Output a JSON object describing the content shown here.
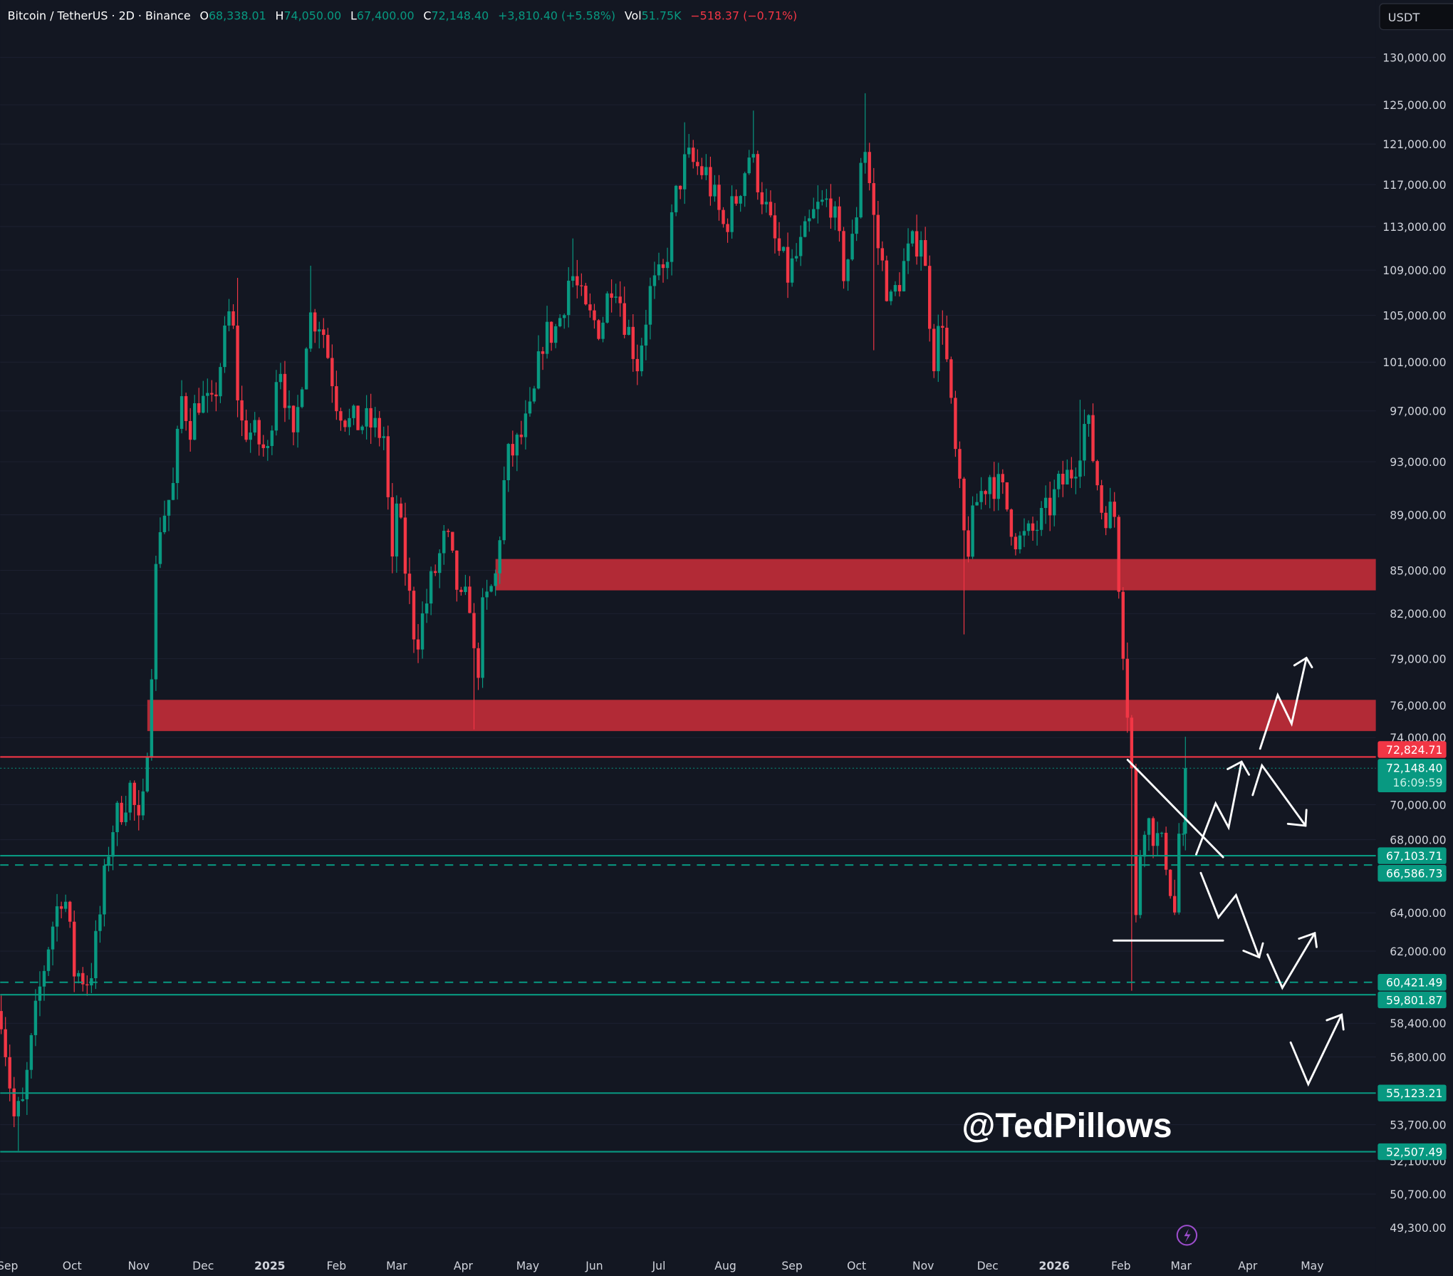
{
  "header": {
    "symbol": "Bitcoin / TetherUS · 2D · Binance",
    "o_label": "O",
    "o_value": "68,338.01",
    "h_label": "H",
    "h_value": "74,050.00",
    "l_label": "L",
    "l_value": "67,400.00",
    "c_label": "C",
    "c_value": "72,148.40",
    "change": "+3,810.40 (+5.58%)",
    "vol_label": "Vol",
    "vol_value": "51.75K",
    "vol_change": "−518.37 (−0.71%)"
  },
  "currency_button": "USDT",
  "watermark": "@TedPillows",
  "colors": {
    "background": "#131722",
    "up": "#089981",
    "down": "#f23645",
    "zone": "#b22a36",
    "drawing": "#ffffff",
    "axis_text": "#d1d4dc"
  },
  "chart_data": {
    "type": "candlestick",
    "title": "Bitcoin / TetherUS · 2D · Binance",
    "y_scale": "log",
    "ylim": [
      48500,
      133000
    ],
    "grid": false,
    "interval": "2D",
    "last_candle": {
      "date": "2026-03-03",
      "open": 68338.01,
      "high": 74050.0,
      "low": 67400.0,
      "close": 72148.4,
      "countdown": "16:09:59"
    },
    "close_path": [
      [
        "2024-08-29",
        59000
      ],
      [
        "2024-09-04",
        54000
      ],
      [
        "2024-09-08",
        54500
      ],
      [
        "2024-09-15",
        59500
      ],
      [
        "2024-09-21",
        63000
      ],
      [
        "2024-09-27",
        65500
      ],
      [
        "2024-10-02",
        61000
      ],
      [
        "2024-10-09",
        60500
      ],
      [
        "2024-10-13",
        63000
      ],
      [
        "2024-10-19",
        68500
      ],
      [
        "2024-10-28",
        71000
      ],
      [
        "2024-11-02",
        68000
      ],
      [
        "2024-11-06",
        76000
      ],
      [
        "2024-11-10",
        88000
      ],
      [
        "2024-11-17",
        91000
      ],
      [
        "2024-11-21",
        98000
      ],
      [
        "2024-11-25",
        96000
      ],
      [
        "2024-11-29",
        98000
      ],
      [
        "2024-12-05",
        97000
      ],
      [
        "2024-12-14",
        106000
      ],
      [
        "2024-12-18",
        96000
      ],
      [
        "2024-12-25",
        95000
      ],
      [
        "2024-12-31",
        93500
      ],
      [
        "2025-01-05",
        102000
      ],
      [
        "2025-01-12",
        94000
      ],
      [
        "2025-01-19",
        105000
      ],
      [
        "2025-01-25",
        104500
      ],
      [
        "2025-02-01",
        98000
      ],
      [
        "2025-02-07",
        96000
      ],
      [
        "2025-02-16",
        96000
      ],
      [
        "2025-02-23",
        95000
      ],
      [
        "2025-02-27",
        85000
      ],
      [
        "2025-03-01",
        90000
      ],
      [
        "2025-03-06",
        84000
      ],
      [
        "2025-03-10",
        80000
      ],
      [
        "2025-03-17",
        84000
      ],
      [
        "2025-03-24",
        87500
      ],
      [
        "2025-03-31",
        82500
      ],
      [
        "2025-04-04",
        83000
      ],
      [
        "2025-04-07",
        77000
      ],
      [
        "2025-04-10",
        82000
      ],
      [
        "2025-04-16",
        84500
      ],
      [
        "2025-04-21",
        93000
      ],
      [
        "2025-04-27",
        94500
      ],
      [
        "2025-05-03",
        97000
      ],
      [
        "2025-05-08",
        103000
      ],
      [
        "2025-05-15",
        104000
      ],
      [
        "2025-05-21",
        109000
      ],
      [
        "2025-05-28",
        105000
      ],
      [
        "2025-06-04",
        104000
      ],
      [
        "2025-06-10",
        109000
      ],
      [
        "2025-06-14",
        105500
      ],
      [
        "2025-06-21",
        101000
      ],
      [
        "2025-06-27",
        107000
      ],
      [
        "2025-07-03",
        108500
      ],
      [
        "2025-07-10",
        117000
      ],
      [
        "2025-07-14",
        119500
      ],
      [
        "2025-07-23",
        118000
      ],
      [
        "2025-07-31",
        113000
      ],
      [
        "2025-08-05",
        115000
      ],
      [
        "2025-08-12",
        120000
      ],
      [
        "2025-08-17",
        117000
      ],
      [
        "2025-08-23",
        112000
      ],
      [
        "2025-08-30",
        108500
      ],
      [
        "2025-09-05",
        111000
      ],
      [
        "2025-09-12",
        114500
      ],
      [
        "2025-09-19",
        115500
      ],
      [
        "2025-09-25",
        109000
      ],
      [
        "2025-09-30",
        112000
      ],
      [
        "2025-10-04",
        122500
      ],
      [
        "2025-10-10",
        112000
      ],
      [
        "2025-10-17",
        106000
      ],
      [
        "2025-10-24",
        110000
      ],
      [
        "2025-10-31",
        112500
      ],
      [
        "2025-11-06",
        101500
      ],
      [
        "2025-11-10",
        105000
      ],
      [
        "2025-11-15",
        95000
      ],
      [
        "2025-11-21",
        86000
      ],
      [
        "2025-11-26",
        90000
      ],
      [
        "2025-12-02",
        92000
      ],
      [
        "2025-12-08",
        90500
      ],
      [
        "2025-12-15",
        87000
      ],
      [
        "2025-12-21",
        87500
      ],
      [
        "2025-12-28",
        89000
      ],
      [
        "2026-01-03",
        91000
      ],
      [
        "2026-01-10",
        92500
      ],
      [
        "2026-01-16",
        96500
      ],
      [
        "2026-01-23",
        89500
      ],
      [
        "2026-01-29",
        89000
      ],
      [
        "2026-02-03",
        78000
      ],
      [
        "2026-02-06",
        72000
      ],
      [
        "2026-02-08",
        63500
      ],
      [
        "2026-02-11",
        69500
      ],
      [
        "2026-02-16",
        68500
      ],
      [
        "2026-02-22",
        67000
      ],
      [
        "2026-02-26",
        64000
      ],
      [
        "2026-03-01",
        68338.01
      ]
    ],
    "wick_extremes": [
      {
        "date": "2024-09-06",
        "low": 52550
      },
      {
        "date": "2024-11-22",
        "high": 99500
      },
      {
        "date": "2024-12-17",
        "high": 108300
      },
      {
        "date": "2025-01-21",
        "high": 109400
      },
      {
        "date": "2025-04-07",
        "low": 74500
      },
      {
        "date": "2025-05-22",
        "high": 111900
      },
      {
        "date": "2025-07-14",
        "high": 123200
      },
      {
        "date": "2025-08-14",
        "high": 124400
      },
      {
        "date": "2025-10-06",
        "high": 126200
      },
      {
        "date": "2025-10-10",
        "low": 102000
      },
      {
        "date": "2025-11-21",
        "low": 80600
      },
      {
        "date": "2026-01-14",
        "high": 97900
      },
      {
        "date": "2026-02-06",
        "low": 60000
      }
    ],
    "zones": [
      {
        "from": "2025-04-16",
        "low": 83600,
        "high": 85800
      },
      {
        "from": "2024-11-05",
        "low": 74400,
        "high": 76350
      }
    ],
    "price_lines": [
      {
        "value": 72824.71,
        "label": "72,824.71",
        "color": "#f23645",
        "style": "solid"
      },
      {
        "value": 67103.71,
        "label": "67,103.71",
        "color": "#089981",
        "style": "solid"
      },
      {
        "value": 66586.73,
        "label": "66,586.73",
        "color": "#089981",
        "style": "dashed"
      },
      {
        "value": 60421.49,
        "label": "60,421.49",
        "color": "#089981",
        "style": "dashed"
      },
      {
        "value": 59801.87,
        "label": "59,801.87",
        "color": "#089981",
        "style": "solid"
      },
      {
        "value": 55123.21,
        "label": "55,123.21",
        "color": "#089981",
        "style": "solid"
      },
      {
        "value": 52507.49,
        "label": "52,507.49",
        "color": "#089981",
        "style": "solid"
      }
    ],
    "current_price": {
      "value": 72148.4,
      "label": "72,148.40",
      "countdown": "16:09:59"
    },
    "y_ticks": [
      {
        "value": 130000,
        "label": "130,000.00"
      },
      {
        "value": 125000,
        "label": "125,000.00"
      },
      {
        "value": 121000,
        "label": "121,000.00"
      },
      {
        "value": 117000,
        "label": "117,000.00"
      },
      {
        "value": 113000,
        "label": "113,000.00"
      },
      {
        "value": 109000,
        "label": "109,000.00"
      },
      {
        "value": 105000,
        "label": "105,000.00"
      },
      {
        "value": 101000,
        "label": "101,000.00"
      },
      {
        "value": 97000,
        "label": "97,000.00"
      },
      {
        "value": 93000,
        "label": "93,000.00"
      },
      {
        "value": 89000,
        "label": "89,000.00"
      },
      {
        "value": 85000,
        "label": "85,000.00"
      },
      {
        "value": 82000,
        "label": "82,000.00"
      },
      {
        "value": 79000,
        "label": "79,000.00"
      },
      {
        "value": 76000,
        "label": "76,000.00"
      },
      {
        "value": 74000,
        "label": "74,000.00"
      },
      {
        "value": 70000,
        "label": "70,000.00"
      },
      {
        "value": 68000,
        "label": "68,000.00"
      },
      {
        "value": 64000,
        "label": "64,000.00"
      },
      {
        "value": 62000,
        "label": "62,000.00"
      },
      {
        "value": 58400,
        "label": "58,400.00"
      },
      {
        "value": 56800,
        "label": "56,800.00"
      },
      {
        "value": 53700,
        "label": "53,700.00"
      },
      {
        "value": 52100,
        "label": "52,100.00"
      },
      {
        "value": 50700,
        "label": "50,700.00"
      },
      {
        "value": 49300,
        "label": "49,300.00"
      }
    ],
    "x_ticks": [
      {
        "date": "2024-09-01",
        "label": "Sep"
      },
      {
        "date": "2024-10-01",
        "label": "Oct"
      },
      {
        "date": "2024-11-01",
        "label": "Nov"
      },
      {
        "date": "2024-12-01",
        "label": "Dec"
      },
      {
        "date": "2025-01-01",
        "label": "2025"
      },
      {
        "date": "2025-02-01",
        "label": "Feb"
      },
      {
        "date": "2025-03-01",
        "label": "Mar"
      },
      {
        "date": "2025-04-01",
        "label": "Apr"
      },
      {
        "date": "2025-05-01",
        "label": "May"
      },
      {
        "date": "2025-06-01",
        "label": "Jun"
      },
      {
        "date": "2025-07-01",
        "label": "Jul"
      },
      {
        "date": "2025-08-01",
        "label": "Aug"
      },
      {
        "date": "2025-09-01",
        "label": "Sep"
      },
      {
        "date": "2025-10-01",
        "label": "Oct"
      },
      {
        "date": "2025-11-01",
        "label": "Nov"
      },
      {
        "date": "2025-12-01",
        "label": "Dec"
      },
      {
        "date": "2026-01-01",
        "label": "2026"
      },
      {
        "date": "2026-02-01",
        "label": "Feb"
      },
      {
        "date": "2026-03-01",
        "label": "Mar"
      },
      {
        "date": "2026-04-01",
        "label": "Apr"
      },
      {
        "date": "2026-05-01",
        "label": "May"
      }
    ]
  }
}
